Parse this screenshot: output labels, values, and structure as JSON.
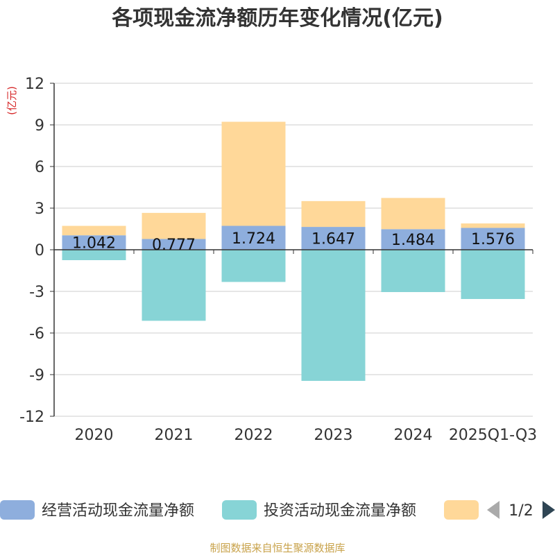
{
  "chart_data": {
    "type": "bar",
    "stacked": true,
    "title": "各项现金流净额历年变化情况(亿元)",
    "ylabel": "(亿元)",
    "xlabel": "",
    "categories": [
      "2020",
      "2021",
      "2022",
      "2023",
      "2024",
      "2025Q1-Q3"
    ],
    "ylim": [
      -12,
      12
    ],
    "yticks": [
      12,
      9,
      6,
      3,
      0,
      -3,
      -6,
      -9,
      -12
    ],
    "grid": true,
    "series": [
      {
        "name": "经营活动现金流量净额",
        "color": "#8eaedd",
        "values": [
          1.042,
          0.777,
          1.724,
          1.647,
          1.484,
          1.576
        ],
        "labels": [
          "1.042",
          "0.777",
          "1.724",
          "1.647",
          "1.484",
          "1.576"
        ]
      },
      {
        "name": "投资活动现金流量净额",
        "color": "#87d4d6",
        "values": [
          -0.75,
          -5.12,
          -2.32,
          -9.45,
          -3.05,
          -3.55
        ]
      },
      {
        "name": "",
        "color": "#ffd899",
        "values": [
          0.68,
          1.88,
          7.5,
          1.86,
          2.25,
          0.32
        ]
      }
    ],
    "legend": {
      "page": "1/2",
      "position": "bottom"
    }
  },
  "colors": {
    "ylabel": "#d62728",
    "footer": "#c8a24a",
    "axis": "#333333",
    "grid": "#cccccc",
    "pager_active": "#2f4554",
    "pager_inactive": "#aaaaaa"
  },
  "footer": "制图数据来自恒生聚源数据库"
}
